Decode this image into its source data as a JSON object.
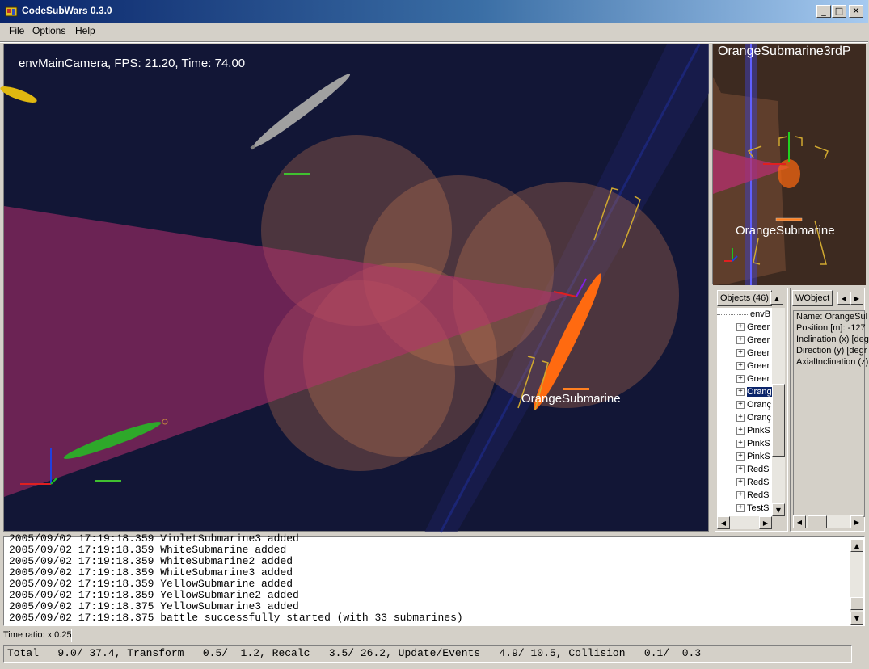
{
  "window": {
    "title": "CodeSubWars 0.3.0",
    "minimize_glyph": "_",
    "maximize_glyph": "□",
    "close_glyph": "✕"
  },
  "menu": {
    "file": "File",
    "options": "Options",
    "help": "Help"
  },
  "main_view": {
    "hud": "envMainCamera, FPS: 21.20, Time: 74.00",
    "orange_label": "OrangeSubmarine"
  },
  "mini_view": {
    "title": "OrangeSubmarine3rdP",
    "label": "OrangeSubmarine"
  },
  "objects_panel": {
    "header": "Objects (46)",
    "items": [
      {
        "label": "envB",
        "expander": ""
      },
      {
        "label": "Greer",
        "expander": "+"
      },
      {
        "label": "Greer",
        "expander": "+"
      },
      {
        "label": "Greer",
        "expander": "+"
      },
      {
        "label": "Greer",
        "expander": "+"
      },
      {
        "label": "Greer",
        "expander": "+"
      },
      {
        "label": "Orang",
        "expander": "+",
        "selected": true
      },
      {
        "label": "Oranç",
        "expander": "+"
      },
      {
        "label": "Oranç",
        "expander": "+"
      },
      {
        "label": "PinkS",
        "expander": "+"
      },
      {
        "label": "PinkS",
        "expander": "+"
      },
      {
        "label": "PinkS",
        "expander": "+"
      },
      {
        "label": "RedS",
        "expander": "+"
      },
      {
        "label": "RedS",
        "expander": "+"
      },
      {
        "label": "RedS",
        "expander": "+"
      },
      {
        "label": "TestS",
        "expander": "+"
      }
    ]
  },
  "wobject_panel": {
    "header": "WObject",
    "lines": [
      "Name: OrangeSul",
      "Position [m]: -127",
      "Inclination (x) [deg",
      "Direction (y) [degr",
      "AxialInclination (z)"
    ]
  },
  "log": {
    "lines": [
      "2005/09/02 17:19:18.359 VioletSubmarine3 added",
      "2005/09/02 17:19:18.359 WhiteSubmarine added",
      "2005/09/02 17:19:18.359 WhiteSubmarine2 added",
      "2005/09/02 17:19:18.359 WhiteSubmarine3 added",
      "2005/09/02 17:19:18.359 YellowSubmarine added",
      "2005/09/02 17:19:18.359 YellowSubmarine2 added",
      "2005/09/02 17:19:18.375 YellowSubmarine3 added",
      "2005/09/02 17:19:18.375 battle successfully started (with 33 submarines)"
    ]
  },
  "time_ratio": "Time ratio: x 0.25",
  "status": "Total   9.0/ 37.4, Transform   0.5/  1.2, Recalc   3.5/ 26.2, Update/Events   4.9/ 10.5, Collision   0.1/  0.3",
  "colors": {
    "ocean": "#121636",
    "sonar_cone": "#b4306e",
    "sonar_sphere": "#c87a50",
    "orange_sub": "#ff6a10",
    "green_sub": "#2ea82a",
    "grey_sub": "#a0a0a0",
    "yellow_sub": "#e0b810",
    "selection": "#0a246a"
  }
}
